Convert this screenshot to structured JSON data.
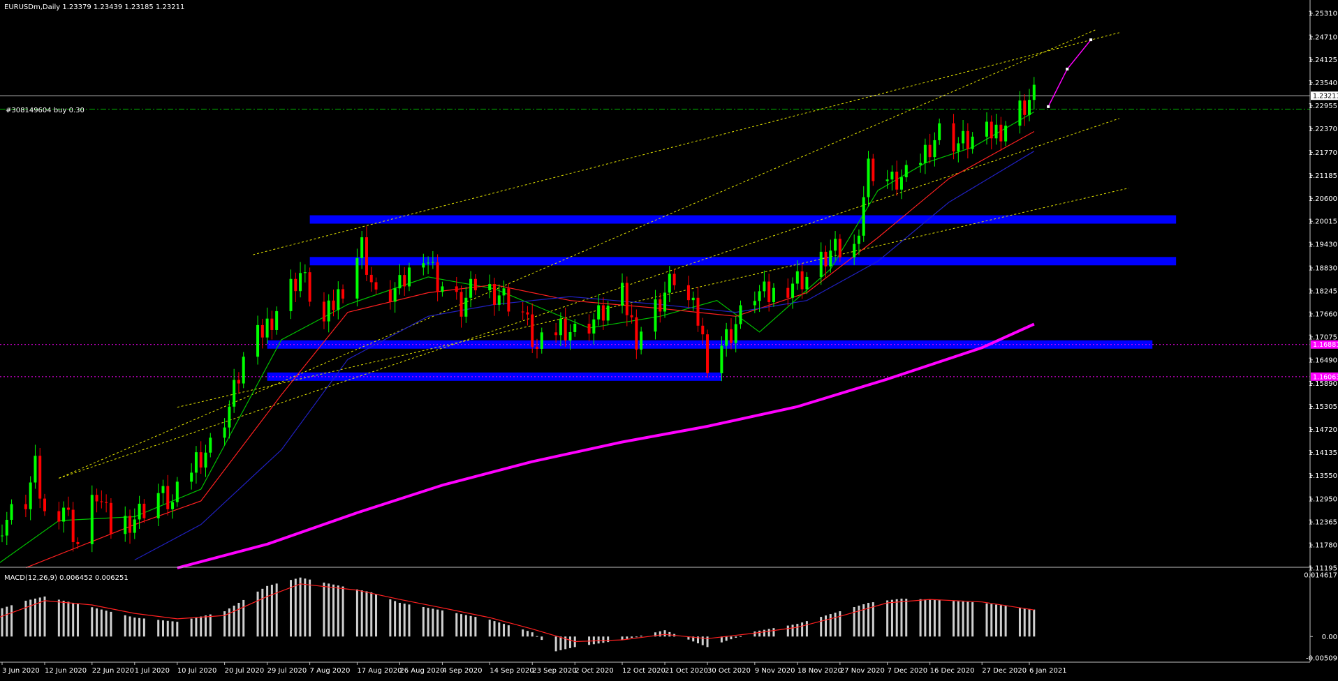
{
  "chart_header": {
    "title": "EURUSDm,Daily  1.23379 1.23439 1.23185 1.23211",
    "order_label": "#308149604 buy 0.30"
  },
  "chart_data": [
    {
      "type": "candlestick",
      "symbol": "EURUSDm",
      "timeframe": "Daily",
      "header_ohlc": {
        "open": 1.23379,
        "high": 1.23439,
        "low": 1.23185,
        "close": 1.23211
      },
      "ylim": [
        1.11195,
        1.2531
      ],
      "y_ticks": [
        "1.25310",
        "1.24710",
        "1.24125",
        "1.23540",
        "1.22955",
        "1.22370",
        "1.21770",
        "1.21185",
        "1.20600",
        "1.20015",
        "1.19430",
        "1.18830",
        "1.18245",
        "1.17660",
        "1.17075",
        "1.16490",
        "1.15890",
        "1.15305",
        "1.14720",
        "1.14135",
        "1.13550",
        "1.12950",
        "1.12365",
        "1.11780",
        "1.11195"
      ],
      "x_ticks": [
        "3 Jun 2020",
        "12 Jun 2020",
        "22 Jun 2020",
        "1 Jul 2020",
        "10 Jul 2020",
        "20 Jul 2020",
        "29 Jul 2020",
        "7 Aug 2020",
        "17 Aug 2020",
        "26 Aug 2020",
        "4 Sep 2020",
        "14 Sep 2020",
        "23 Sep 2020",
        "2 Oct 2020",
        "12 Oct 2020",
        "21 Oct 2020",
        "30 Oct 2020",
        "9 Nov 2020",
        "18 Nov 2020",
        "27 Nov 2020",
        "7 Dec 2020",
        "16 Dec 2020",
        "27 Dec 2020",
        "6 Jan 2021"
      ],
      "price_labels": [
        {
          "text": "1.23211",
          "value": 1.23211,
          "color": "#ffffff"
        },
        {
          "text": "1.16881",
          "value": 1.16881,
          "color": "#ff00ff"
        },
        {
          "text": "1.16063",
          "value": 1.16063,
          "color": "#ff00ff"
        }
      ],
      "horizontal_lines": [
        {
          "name": "bid",
          "value": 1.23211,
          "color": "#c0c0c0",
          "style": "solid"
        },
        {
          "name": "order-buy",
          "value": 1.2287,
          "color": "#00b000",
          "style": "dash-dot"
        },
        {
          "name": "level-high",
          "value": 1.16881,
          "color": "#ff00ff",
          "style": "dotted"
        },
        {
          "name": "level-low",
          "value": 1.16063,
          "color": "#ff00ff",
          "style": "dotted"
        }
      ],
      "zones": [
        {
          "from": "7 Aug 2020",
          "to": "6 Feb 2021",
          "value": 1.20063,
          "color": "#0000ff"
        },
        {
          "from": "7 Aug 2020",
          "to": "6 Feb 2021",
          "value": 1.19002,
          "color": "#0000ff"
        },
        {
          "from": "29 Jul 2020",
          "to": "1 Feb 2021",
          "value": 1.16881,
          "color": "#0000ff"
        },
        {
          "from": "29 Jul 2020",
          "to": "2 Nov 2020",
          "value": 1.16063,
          "color": "#0000ff"
        }
      ],
      "channel_lines": [
        {
          "x1": "15 Jun 2020",
          "y1": 1.13479,
          "x2": "20 Jan 2021",
          "y2": 1.24889,
          "color": "#e6e600",
          "style": "dotted"
        },
        {
          "x1": "26 Jul 2020",
          "y1": 1.19165,
          "x2": "25 Jan 2021",
          "y2": 1.24816,
          "color": "#e6e600",
          "style": "dotted"
        },
        {
          "x1": "15 Jun 2020",
          "y1": 1.13479,
          "x2": "25 Jan 2021",
          "y2": 1.22633,
          "color": "#e6e600",
          "style": "dotted"
        },
        {
          "x1": "10 Jul 2020",
          "y1": 1.15284,
          "x2": "27 Jan 2021",
          "y2": 1.20861,
          "color": "#e6e600",
          "style": "dotted"
        }
      ],
      "projection": {
        "color": "#ff00ff",
        "points": [
          {
            "x": "10 Jan 2021",
            "y": 1.22934
          },
          {
            "x": "14 Jan 2021",
            "y": 1.2389
          },
          {
            "x": "19 Jan 2021",
            "y": 1.24634
          }
        ]
      },
      "candles_summary": {
        "first_date": "1 Jun 2020",
        "last_date": "7 Jan 2021",
        "approximate_closes": [
          [
            "1 Jun 2020",
            1.113
          ],
          [
            "3 Jun 2020",
            1.123
          ],
          [
            "8 Jun 2020",
            1.129
          ],
          [
            "10 Jun 2020",
            1.137
          ],
          [
            "12 Jun 2020",
            1.125
          ],
          [
            "16 Jun 2020",
            1.128
          ],
          [
            "19 Jun 2020",
            1.118
          ],
          [
            "23 Jun 2020",
            1.131
          ],
          [
            "26 Jun 2020",
            1.122
          ],
          [
            "1 Jul 2020",
            1.125
          ],
          [
            "6 Jul 2020",
            1.131
          ],
          [
            "9 Jul 2020",
            1.128
          ],
          [
            "14 Jul 2020",
            1.14
          ],
          [
            "17 Jul 2020",
            1.143
          ],
          [
            "21 Jul 2020",
            1.153
          ],
          [
            "24 Jul 2020",
            1.165
          ],
          [
            "28 Jul 2020",
            1.172
          ],
          [
            "31 Jul 2020",
            1.178
          ],
          [
            "5 Aug 2020",
            1.187
          ],
          [
            "10 Aug 2020",
            1.174
          ],
          [
            "14 Aug 2020",
            1.184
          ],
          [
            "18 Aug 2020",
            1.194
          ],
          [
            "21 Aug 2020",
            1.18
          ],
          [
            "26 Aug 2020",
            1.183
          ],
          [
            "31 Aug 2020",
            1.193
          ],
          [
            "3 Sep 2020",
            1.185
          ],
          [
            "8 Sep 2020",
            1.178
          ],
          [
            "11 Sep 2020",
            1.184
          ],
          [
            "16 Sep 2020",
            1.182
          ],
          [
            "21 Sep 2020",
            1.177
          ],
          [
            "24 Sep 2020",
            1.167
          ],
          [
            "29 Sep 2020",
            1.174
          ],
          [
            "2 Oct 2020",
            1.172
          ],
          [
            "7 Oct 2020",
            1.176
          ],
          [
            "12 Oct 2020",
            1.181
          ],
          [
            "15 Oct 2020",
            1.171
          ],
          [
            "20 Oct 2020",
            1.18
          ],
          [
            "23 Oct 2020",
            1.186
          ],
          [
            "28 Oct 2020",
            1.175
          ],
          [
            "30 Oct 2020",
            1.165
          ],
          [
            "4 Nov 2020",
            1.172
          ],
          [
            "9 Nov 2020",
            1.182
          ],
          [
            "12 Nov 2020",
            1.181
          ],
          [
            "17 Nov 2020",
            1.185
          ],
          [
            "20 Nov 2020",
            1.186
          ],
          [
            "25 Nov 2020",
            1.192
          ],
          [
            "30 Nov 2020",
            1.193
          ],
          [
            "3 Dec 2020",
            1.214
          ],
          [
            "8 Dec 2020",
            1.21
          ],
          [
            "11 Dec 2020",
            1.211
          ],
          [
            "16 Dec 2020",
            1.22
          ],
          [
            "18 Dec 2020",
            1.223
          ],
          [
            "22 Dec 2020",
            1.22
          ],
          [
            "28 Dec 2020",
            1.222
          ],
          [
            "31 Dec 2020",
            1.224
          ],
          [
            "5 Jan 2021",
            1.23
          ],
          [
            "7 Jan 2021",
            1.2321
          ]
        ]
      },
      "overlays": [
        {
          "name": "fast-ma",
          "color": "#00c000",
          "points": [
            [
              "1 Jun 2020",
              1.112
            ],
            [
              "15 Jun 2020",
              1.124
            ],
            [
              "1 Jul 2020",
              1.125
            ],
            [
              "15 Jul 2020",
              1.132
            ],
            [
              "1 Aug 2020",
              1.17
            ],
            [
              "15 Aug 2020",
              1.179
            ],
            [
              "1 Sep 2020",
              1.186
            ],
            [
              "15 Sep 2020",
              1.183
            ],
            [
              "25 Sep 2020",
              1.178
            ],
            [
              "5 Oct 2020",
              1.173
            ],
            [
              "20 Oct 2020",
              1.176
            ],
            [
              "1 Nov 2020",
              1.18
            ],
            [
              "10 Nov 2020",
              1.172
            ],
            [
              "25 Nov 2020",
              1.188
            ],
            [
              "5 Dec 2020",
              1.208
            ],
            [
              "15 Dec 2020",
              1.215
            ],
            [
              "25 Dec 2020",
              1.219
            ],
            [
              "7 Jan 2021",
              1.228
            ]
          ]
        },
        {
          "name": "mid-ma",
          "color": "#ff2020",
          "points": [
            [
              "8 Jun 2020",
              1.112
            ],
            [
              "1 Jul 2020",
              1.123
            ],
            [
              "15 Jul 2020",
              1.129
            ],
            [
              "1 Aug 2020",
              1.156
            ],
            [
              "15 Aug 2020",
              1.177
            ],
            [
              "1 Sep 2020",
              1.182
            ],
            [
              "15 Sep 2020",
              1.184
            ],
            [
              "1 Oct 2020",
              1.18
            ],
            [
              "20 Oct 2020",
              1.178
            ],
            [
              "5 Nov 2020",
              1.176
            ],
            [
              "20 Nov 2020",
              1.182
            ],
            [
              "5 Dec 2020",
              1.196
            ],
            [
              "20 Dec 2020",
              1.211
            ],
            [
              "7 Jan 2021",
              1.223
            ]
          ]
        },
        {
          "name": "slow-ma",
          "color": "#2020c0",
          "points": [
            [
              "1 Jul 2020",
              1.114
            ],
            [
              "15 Jul 2020",
              1.123
            ],
            [
              "1 Aug 2020",
              1.142
            ],
            [
              "15 Aug 2020",
              1.165
            ],
            [
              "1 Sep 2020",
              1.176
            ],
            [
              "15 Sep 2020",
              1.179
            ],
            [
              "1 Oct 2020",
              1.181
            ],
            [
              "20 Oct 2020",
              1.179
            ],
            [
              "5 Nov 2020",
              1.177
            ],
            [
              "20 Nov 2020",
              1.18
            ],
            [
              "5 Dec 2020",
              1.19
            ],
            [
              "20 Dec 2020",
              1.205
            ],
            [
              "7 Jan 2021",
              1.218
            ]
          ]
        },
        {
          "name": "ma-200",
          "color": "#ff00ff",
          "points": [
            [
              "10 Jul 2020",
              1.11195
            ],
            [
              "29 Jul 2020",
              1.118
            ],
            [
              "17 Aug 2020",
              1.126
            ],
            [
              "4 Sep 2020",
              1.133
            ],
            [
              "23 Sep 2020",
              1.139
            ],
            [
              "12 Oct 2020",
              1.144
            ],
            [
              "30 Oct 2020",
              1.148
            ],
            [
              "18 Nov 2020",
              1.153
            ],
            [
              "7 Dec 2020",
              1.16
            ],
            [
              "27 Dec 2020",
              1.168
            ],
            [
              "7 Jan 2021",
              1.174
            ]
          ]
        }
      ]
    },
    {
      "type": "bar",
      "indicator": "MACD",
      "title": "MACD(12,26,9) 0.006452 0.006251",
      "y_ticks": [
        "0.014617",
        "0.00",
        "-0.00509"
      ],
      "ylim": [
        -0.00509,
        0.014617
      ],
      "macd_points": [
        [
          "1 Jun 2020",
          0.006
        ],
        [
          "8 Jun 2020",
          0.0085
        ],
        [
          "12 Jun 2020",
          0.0095
        ],
        [
          "20 Jun 2020",
          0.0075
        ],
        [
          "1 Jul 2020",
          0.0045
        ],
        [
          "10 Jul 2020",
          0.0035
        ],
        [
          "20 Jul 2020",
          0.006
        ],
        [
          "29 Jul 2020",
          0.012
        ],
        [
          "5 Aug 2020",
          0.014
        ],
        [
          "10 Aug 2020",
          0.0128
        ],
        [
          "20 Aug 2020",
          0.0105
        ],
        [
          "26 Aug 2020",
          0.008
        ],
        [
          "4 Sep 2020",
          0.0062
        ],
        [
          "14 Sep 2020",
          0.004
        ],
        [
          "23 Sep 2020",
          0.001
        ],
        [
          "28 Sep 2020",
          -0.0035
        ],
        [
          "2 Oct 2020",
          -0.0025
        ],
        [
          "12 Oct 2020",
          -0.0008
        ],
        [
          "21 Oct 2020",
          0.0015
        ],
        [
          "30 Oct 2020",
          -0.0025
        ],
        [
          "9 Nov 2020",
          0.0012
        ],
        [
          "18 Nov 2020",
          0.003
        ],
        [
          "27 Nov 2020",
          0.006
        ],
        [
          "3 Dec 2020",
          0.008
        ],
        [
          "10 Dec 2020",
          0.009
        ],
        [
          "16 Dec 2020",
          0.0088
        ],
        [
          "27 Dec 2020",
          0.008
        ],
        [
          "7 Jan 2021",
          0.0064
        ]
      ],
      "signal_points": [
        [
          "1 Jun 2020",
          0.004
        ],
        [
          "12 Jun 2020",
          0.0085
        ],
        [
          "22 Jun 2020",
          0.0075
        ],
        [
          "1 Jul 2020",
          0.0055
        ],
        [
          "10 Jul 2020",
          0.0042
        ],
        [
          "20 Jul 2020",
          0.005
        ],
        [
          "29 Jul 2020",
          0.0095
        ],
        [
          "5 Aug 2020",
          0.0125
        ],
        [
          "17 Aug 2020",
          0.011
        ],
        [
          "26 Aug 2020",
          0.0088
        ],
        [
          "4 Sep 2020",
          0.0068
        ],
        [
          "14 Sep 2020",
          0.0045
        ],
        [
          "23 Sep 2020",
          0.0018
        ],
        [
          "2 Oct 2020",
          -0.0012
        ],
        [
          "12 Oct 2020",
          -0.0008
        ],
        [
          "21 Oct 2020",
          0.0005
        ],
        [
          "30 Oct 2020",
          -0.0005
        ],
        [
          "9 Nov 2020",
          0.0008
        ],
        [
          "18 Nov 2020",
          0.0022
        ],
        [
          "27 Nov 2020",
          0.0048
        ],
        [
          "7 Dec 2020",
          0.008
        ],
        [
          "16 Dec 2020",
          0.0088
        ],
        [
          "27 Dec 2020",
          0.0082
        ],
        [
          "7 Jan 2021",
          0.0063
        ]
      ]
    }
  ]
}
